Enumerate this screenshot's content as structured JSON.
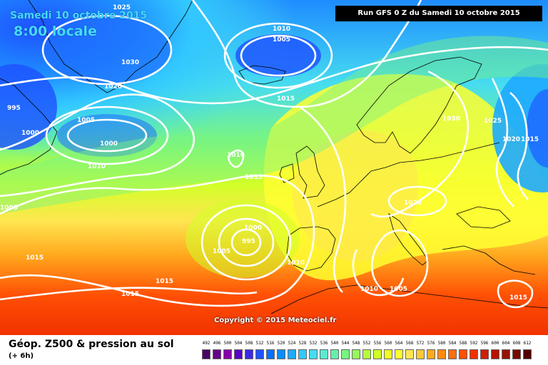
{
  "title": {
    "date": "Samedi 10 octobre 2015",
    "time": "8:00 locale"
  },
  "run_info": "Run GFS 0 Z du Samedi 10 octobre 2015",
  "copyright": "Copyright © 2015 Meteociel.fr",
  "legend": {
    "title": "Géop. Z500 & pression au sol",
    "subtitle": "(+ 6h)",
    "scale_values": [
      "492",
      "496",
      "500",
      "504",
      "508",
      "512",
      "516",
      "520",
      "524",
      "528",
      "532",
      "536",
      "540",
      "544",
      "548",
      "552",
      "556",
      "560",
      "564",
      "568",
      "572",
      "576",
      "580",
      "584",
      "588",
      "592",
      "596",
      "600",
      "604",
      "608",
      "612"
    ],
    "scale_colors": [
      "#4b0066",
      "#660088",
      "#8800aa",
      "#5a00c8",
      "#3c28e6",
      "#1e50ff",
      "#0a6eff",
      "#0a8cff",
      "#1eaaff",
      "#32c8ff",
      "#46dcf0",
      "#5aebd2",
      "#64f0aa",
      "#78f582",
      "#96fa5a",
      "#b4ff3c",
      "#d2ff28",
      "#f0ff1e",
      "#ffff30",
      "#ffe650",
      "#ffc832",
      "#ffaa1e",
      "#ff8c14",
      "#ff6e0a",
      "#ff5005",
      "#f03200",
      "#d21e00",
      "#b41400",
      "#961400",
      "#780a00",
      "#500000"
    ]
  },
  "isobar_labels": [
    "1025",
    "1010",
    "1005",
    "1030",
    "1020",
    "995",
    "1005",
    "1000",
    "1000",
    "1010",
    "1015",
    "1010",
    "1015",
    "1005",
    "1000",
    "995",
    "1005",
    "1010",
    "1015",
    "1015",
    "1015",
    "1030",
    "1025",
    "1020",
    "1015",
    "1020",
    "1010",
    "1005",
    "1015"
  ]
}
